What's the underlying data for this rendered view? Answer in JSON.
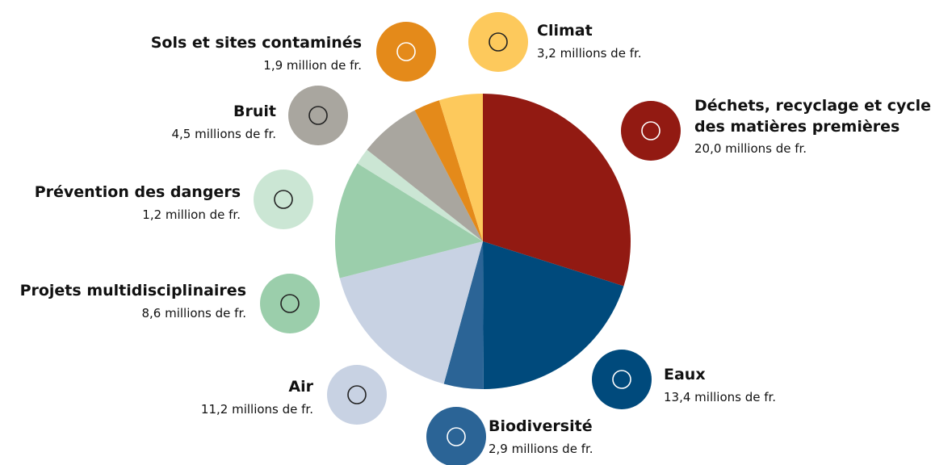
{
  "chart_data": {
    "type": "pie",
    "categories": [
      "Déchets, recyclage et cycle des matières premières",
      "Eaux",
      "Biodiversité",
      "Air",
      "Projets multidisciplinaires",
      "Prévention des dangers",
      "Bruit",
      "Sols et sites contaminés",
      "Climat"
    ],
    "values": [
      20.0,
      13.4,
      2.9,
      11.2,
      8.6,
      1.2,
      4.5,
      1.9,
      3.2
    ],
    "value_labels": [
      "20,0 millions de fr.",
      "13,4 millions de fr.",
      "2,9 millions de fr.",
      "11,2 millions de fr.",
      "8,6 millions de fr.",
      "1,2 million de fr.",
      "4,5 millions de fr.",
      "1,9 million de fr.",
      "3,2 millions de fr."
    ],
    "colors": [
      "#921a12",
      "#004a7c",
      "#2b6496",
      "#c8d2e3",
      "#9bceab",
      "#cbe6d4",
      "#a9a69f",
      "#e48a1a",
      "#fdc95c"
    ]
  }
}
